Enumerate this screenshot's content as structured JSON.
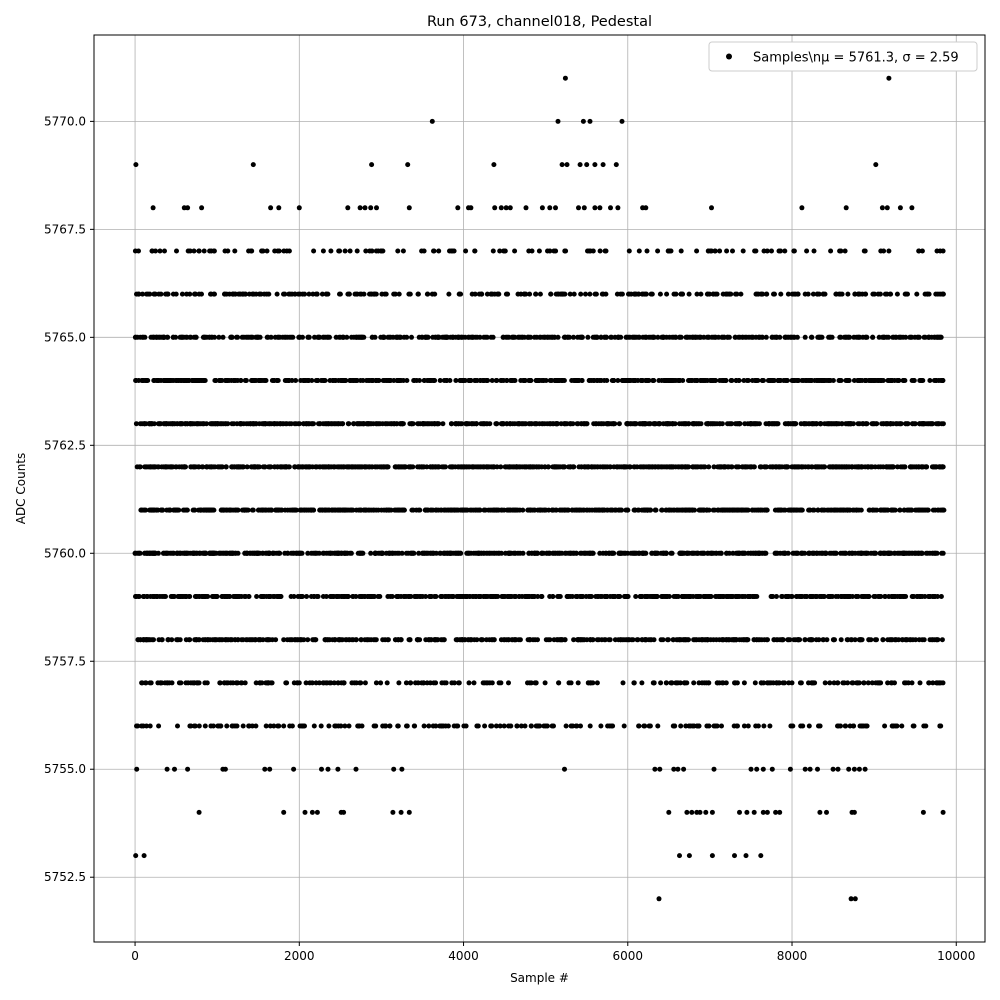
{
  "chart_data": {
    "type": "scatter",
    "title": "Run 673, channel018, Pedestal",
    "xlabel": "Sample #",
    "ylabel": "ADC Counts",
    "xlim": [
      -500,
      10350
    ],
    "ylim": [
      5751.0,
      5772.0
    ],
    "x_ticks": [
      0,
      2000,
      4000,
      6000,
      8000,
      10000
    ],
    "x_tick_labels": [
      "0",
      "2000",
      "4000",
      "6000",
      "8000",
      "10000"
    ],
    "y_ticks": [
      5752.5,
      5755.0,
      5757.5,
      5760.0,
      5762.5,
      5765.0,
      5767.5,
      5770.0
    ],
    "y_tick_labels": [
      "5752.5",
      "5755.0",
      "5757.5",
      "5760.0",
      "5762.5",
      "5765.0",
      "5767.5",
      "5770.0"
    ],
    "grid": true,
    "legend": {
      "position": "top-right",
      "label": "Samples\\nμ = 5761.3, σ = 2.59"
    },
    "marker_color": "#000000",
    "series": [
      {
        "name": "Samples\\nμ = 5761.3, σ = 2.59",
        "points": [
          [
            10,
            5769
          ],
          [
            1440,
            5769
          ],
          [
            2880,
            5769
          ],
          [
            3320,
            5769
          ],
          [
            4370,
            5769
          ],
          [
            5200,
            5769
          ],
          [
            5260,
            5769
          ],
          [
            5420,
            5769
          ],
          [
            5500,
            5769
          ],
          [
            5600,
            5769
          ],
          [
            5700,
            5769
          ],
          [
            5860,
            5769
          ],
          [
            9020,
            5769
          ],
          [
            3620,
            5770
          ],
          [
            5150,
            5770
          ],
          [
            5460,
            5770
          ],
          [
            5540,
            5770
          ],
          [
            5930,
            5770
          ],
          [
            5240,
            5771
          ],
          [
            9180,
            5771
          ],
          [
            220,
            5768
          ],
          [
            600,
            5768
          ],
          [
            640,
            5768
          ],
          [
            810,
            5768
          ],
          [
            1650,
            5768
          ],
          [
            1750,
            5768
          ],
          [
            2000,
            5768
          ],
          [
            2590,
            5768
          ],
          [
            2740,
            5768
          ],
          [
            2800,
            5768
          ],
          [
            2870,
            5768
          ],
          [
            2940,
            5768
          ],
          [
            3340,
            5768
          ],
          [
            3930,
            5768
          ],
          [
            4060,
            5768
          ],
          [
            4090,
            5768
          ],
          [
            4380,
            5768
          ],
          [
            4460,
            5768
          ],
          [
            4520,
            5768
          ],
          [
            4570,
            5768
          ],
          [
            4760,
            5768
          ],
          [
            4960,
            5768
          ],
          [
            5050,
            5768
          ],
          [
            5120,
            5768
          ],
          [
            5400,
            5768
          ],
          [
            5470,
            5768
          ],
          [
            5600,
            5768
          ],
          [
            5660,
            5768
          ],
          [
            5790,
            5768
          ],
          [
            5880,
            5768
          ],
          [
            6180,
            5768
          ],
          [
            6220,
            5768
          ],
          [
            7020,
            5768
          ],
          [
            8120,
            5768
          ],
          [
            8660,
            5768
          ],
          [
            9100,
            5768
          ],
          [
            9160,
            5768
          ],
          [
            9320,
            5768
          ],
          [
            9460,
            5768
          ],
          [
            8,
            5753
          ],
          [
            110,
            5753
          ],
          [
            6630,
            5753
          ],
          [
            6750,
            5753
          ],
          [
            7030,
            5753
          ],
          [
            7300,
            5753
          ],
          [
            7440,
            5753
          ],
          [
            7620,
            5753
          ],
          [
            6380,
            5752
          ],
          [
            8720,
            5752
          ],
          [
            8770,
            5752
          ],
          [
            780,
            5754
          ],
          [
            1810,
            5754
          ],
          [
            2070,
            5754
          ],
          [
            2160,
            5754
          ],
          [
            2220,
            5754
          ],
          [
            2510,
            5754
          ],
          [
            2540,
            5754
          ],
          [
            3140,
            5754
          ],
          [
            3240,
            5754
          ],
          [
            3340,
            5754
          ],
          [
            6500,
            5754
          ],
          [
            6720,
            5754
          ],
          [
            6780,
            5754
          ],
          [
            6840,
            5754
          ],
          [
            6880,
            5754
          ],
          [
            6950,
            5754
          ],
          [
            7030,
            5754
          ],
          [
            7360,
            5754
          ],
          [
            7450,
            5754
          ],
          [
            7540,
            5754
          ],
          [
            7650,
            5754
          ],
          [
            7700,
            5754
          ],
          [
            7800,
            5754
          ],
          [
            7850,
            5754
          ],
          [
            8340,
            5754
          ],
          [
            8420,
            5754
          ],
          [
            8730,
            5754
          ],
          [
            8760,
            5754
          ],
          [
            9600,
            5754
          ],
          [
            9840,
            5754
          ],
          [
            20,
            5755
          ],
          [
            390,
            5755
          ],
          [
            480,
            5755
          ],
          [
            640,
            5755
          ],
          [
            1070,
            5755
          ],
          [
            1100,
            5755
          ],
          [
            1580,
            5755
          ],
          [
            1640,
            5755
          ],
          [
            1930,
            5755
          ],
          [
            2270,
            5755
          ],
          [
            2350,
            5755
          ],
          [
            2470,
            5755
          ],
          [
            2690,
            5755
          ],
          [
            3150,
            5755
          ],
          [
            3250,
            5755
          ],
          [
            5230,
            5755
          ],
          [
            6330,
            5755
          ],
          [
            6390,
            5755
          ],
          [
            6560,
            5755
          ],
          [
            6610,
            5755
          ],
          [
            6680,
            5755
          ],
          [
            7050,
            5755
          ],
          [
            7500,
            5755
          ],
          [
            7570,
            5755
          ],
          [
            7650,
            5755
          ],
          [
            7760,
            5755
          ],
          [
            7980,
            5755
          ],
          [
            8160,
            5755
          ],
          [
            8220,
            5755
          ],
          [
            8310,
            5755
          ],
          [
            8500,
            5755
          ],
          [
            8560,
            5755
          ],
          [
            8690,
            5755
          ],
          [
            8760,
            5755
          ],
          [
            8820,
            5755
          ],
          [
            8890,
            5755
          ],
          [
            180,
            5766
          ],
          [
            390,
            5766
          ],
          [
            1150,
            5766
          ],
          [
            1520,
            5766
          ],
          [
            2040,
            5766
          ],
          [
            2330,
            5766
          ],
          [
            2920,
            5766
          ],
          [
            3170,
            5766
          ],
          [
            3620,
            5766
          ],
          [
            4380,
            5766
          ],
          [
            5180,
            5766
          ],
          [
            6100,
            5766
          ],
          [
            7070,
            5766
          ],
          [
            8260,
            5766
          ],
          [
            9050,
            5766
          ],
          [
            9620,
            5766
          ],
          [
            210,
            5767
          ],
          [
            930,
            5767
          ],
          [
            1420,
            5767
          ],
          [
            1880,
            5767
          ],
          [
            2480,
            5767
          ],
          [
            3640,
            5767
          ],
          [
            4440,
            5767
          ],
          [
            5100,
            5767
          ],
          [
            5510,
            5767
          ],
          [
            6140,
            5767
          ],
          [
            7020,
            5767
          ],
          [
            7750,
            5767
          ],
          [
            8470,
            5767
          ],
          [
            9180,
            5767
          ],
          [
            9840,
            5767
          ],
          [
            100,
            5756
          ],
          [
            680,
            5756
          ],
          [
            1190,
            5756
          ],
          [
            1750,
            5756
          ],
          [
            2360,
            5756
          ],
          [
            3050,
            5756
          ],
          [
            3710,
            5756
          ],
          [
            4180,
            5756
          ],
          [
            4650,
            5756
          ],
          [
            5000,
            5756
          ],
          [
            5310,
            5756
          ],
          [
            5780,
            5756
          ],
          [
            6260,
            5756
          ],
          [
            6850,
            5756
          ],
          [
            7420,
            5756
          ],
          [
            8010,
            5756
          ],
          [
            8590,
            5756
          ],
          [
            9230,
            5756
          ],
          [
            9810,
            5756
          ],
          [
            80,
            5757
          ],
          [
            540,
            5757
          ],
          [
            1130,
            5757
          ],
          [
            1600,
            5757
          ],
          [
            2290,
            5757
          ],
          [
            2990,
            5757
          ],
          [
            3490,
            5757
          ],
          [
            4320,
            5757
          ],
          [
            4870,
            5757
          ],
          [
            5310,
            5757
          ],
          [
            5630,
            5757
          ],
          [
            6080,
            5757
          ],
          [
            6690,
            5757
          ],
          [
            7310,
            5757
          ],
          [
            7890,
            5757
          ],
          [
            8460,
            5757
          ],
          [
            9050,
            5757
          ],
          [
            9760,
            5757
          ]
        ],
        "rows": [
          {
            "y": 5765,
            "count": 440,
            "seed": 11
          },
          {
            "y": 5764,
            "count": 560,
            "seed": 23
          },
          {
            "y": 5763,
            "count": 640,
            "seed": 37
          },
          {
            "y": 5762,
            "count": 700,
            "seed": 41
          },
          {
            "y": 5761,
            "count": 700,
            "seed": 53
          },
          {
            "y": 5760,
            "count": 660,
            "seed": 67
          },
          {
            "y": 5759,
            "count": 560,
            "seed": 71
          },
          {
            "y": 5758,
            "count": 460,
            "seed": 83
          },
          {
            "y": 5757,
            "count": 230,
            "seed": 97
          },
          {
            "y": 5756,
            "count": 180,
            "seed": 101
          },
          {
            "y": 5766,
            "count": 260,
            "seed": 113
          },
          {
            "y": 5767,
            "count": 120,
            "seed": 127
          }
        ],
        "row_x_range": [
          0,
          9850
        ]
      }
    ]
  }
}
